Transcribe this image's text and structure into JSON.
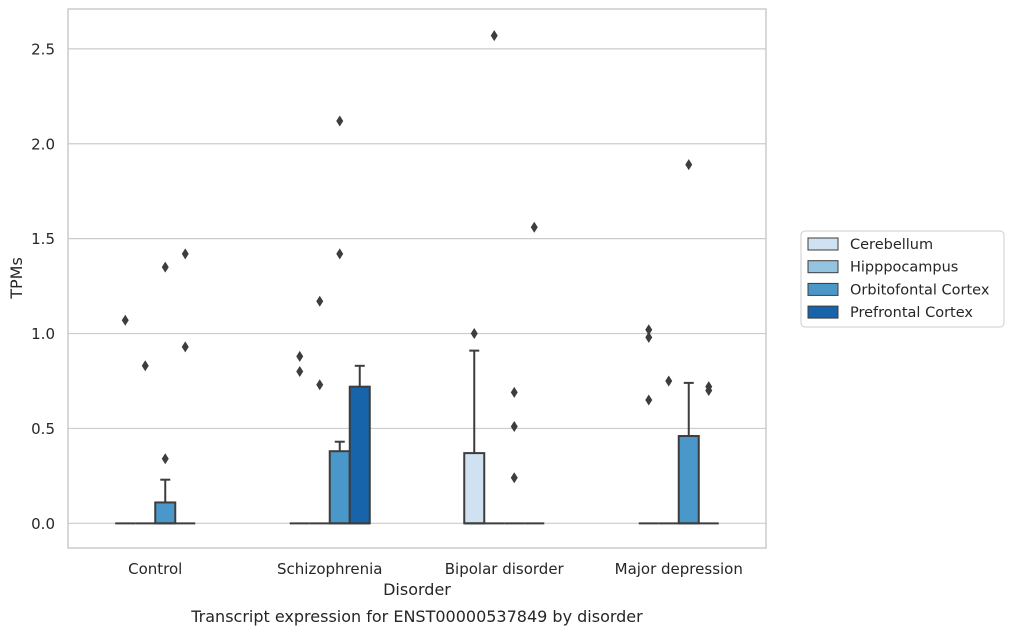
{
  "chart_data": {
    "type": "box",
    "caption": "Transcript expression for ENST00000537849 by disorder",
    "xlabel": "Disorder",
    "ylabel": "TPMs",
    "categories": [
      "Control",
      "Schizophrenia",
      "Bipolar disorder",
      "Major depression"
    ],
    "yticks": [
      "0.0",
      "0.5",
      "1.0",
      "1.5",
      "2.0",
      "2.5"
    ],
    "ytick_values": [
      0.0,
      0.5,
      1.0,
      1.5,
      2.0,
      2.5
    ],
    "ylim": [
      -0.13,
      2.71
    ],
    "grid": "horizontal",
    "legend_position": "right",
    "series": [
      {
        "name": "Cerebellum",
        "color": "#d0e1f2",
        "boxes": [
          {
            "q1": 0,
            "median": 0,
            "q3": 0,
            "whisker_low": 0,
            "whisker_high": 0,
            "outliers": [
              1.07
            ]
          },
          {
            "q1": 0,
            "median": 0,
            "q3": 0,
            "whisker_low": 0,
            "whisker_high": 0,
            "outliers": [
              0.88,
              0.8
            ]
          },
          {
            "q1": 0,
            "median": 0,
            "q3": 0.37,
            "whisker_low": 0,
            "whisker_high": 0.91,
            "outliers": [
              1.0
            ]
          },
          {
            "q1": 0,
            "median": 0,
            "q3": 0,
            "whisker_low": 0,
            "whisker_high": 0,
            "outliers": [
              1.02,
              0.98,
              0.65
            ]
          }
        ]
      },
      {
        "name": "Hipppocampus",
        "color": "#94c4df",
        "boxes": [
          {
            "q1": 0,
            "median": 0,
            "q3": 0,
            "whisker_low": 0,
            "whisker_high": 0,
            "outliers": [
              0.83
            ]
          },
          {
            "q1": 0,
            "median": 0,
            "q3": 0,
            "whisker_low": 0,
            "whisker_high": 0,
            "outliers": [
              1.17,
              0.73
            ]
          },
          {
            "q1": 0,
            "median": 0,
            "q3": 0,
            "whisker_low": 0,
            "whisker_high": 0,
            "outliers": [
              2.57
            ]
          },
          {
            "q1": 0,
            "median": 0,
            "q3": 0,
            "whisker_low": 0,
            "whisker_high": 0,
            "outliers": [
              0.75
            ]
          }
        ]
      },
      {
        "name": "Orbitofontal Cortex",
        "color": "#4a98c9",
        "boxes": [
          {
            "q1": 0,
            "median": 0,
            "q3": 0.11,
            "whisker_low": 0,
            "whisker_high": 0.23,
            "outliers": [
              1.35,
              0.34
            ]
          },
          {
            "q1": 0,
            "median": 0,
            "q3": 0.38,
            "whisker_low": 0,
            "whisker_high": 0.43,
            "outliers": [
              2.12,
              1.42
            ]
          },
          {
            "q1": 0,
            "median": 0,
            "q3": 0,
            "whisker_low": 0,
            "whisker_high": 0,
            "outliers": [
              0.69,
              0.51,
              0.24
            ]
          },
          {
            "q1": 0,
            "median": 0,
            "q3": 0.46,
            "whisker_low": 0,
            "whisker_high": 0.74,
            "outliers": [
              1.89
            ]
          }
        ]
      },
      {
        "name": "Prefrontal Cortex",
        "color": "#1764ab",
        "boxes": [
          {
            "q1": 0,
            "median": 0,
            "q3": 0,
            "whisker_low": 0,
            "whisker_high": 0,
            "outliers": [
              1.42,
              0.93
            ]
          },
          {
            "q1": 0,
            "median": 0,
            "q3": 0.72,
            "whisker_low": 0,
            "whisker_high": 0.83,
            "outliers": []
          },
          {
            "q1": 0,
            "median": 0,
            "q3": 0,
            "whisker_low": 0,
            "whisker_high": 0,
            "outliers": [
              1.56
            ]
          },
          {
            "q1": 0,
            "median": 0,
            "q3": 0,
            "whisker_low": 0,
            "whisker_high": 0,
            "outliers": [
              0.72,
              0.7
            ]
          }
        ]
      }
    ]
  }
}
